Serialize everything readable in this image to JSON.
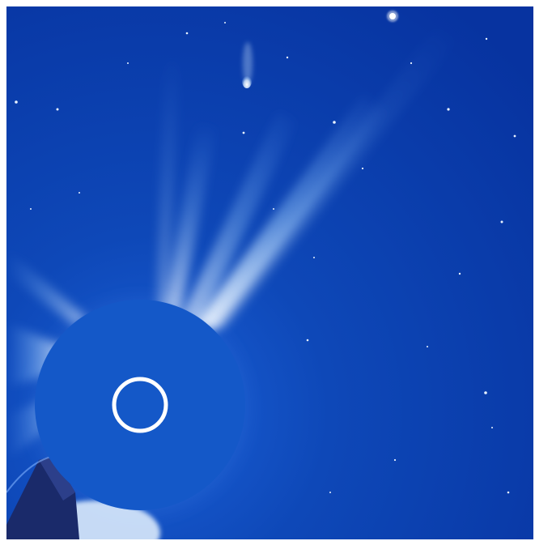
{
  "image": {
    "kind": "coronagraph-view",
    "features": [
      "coronal-streamers",
      "occulter-disk",
      "sun-outline",
      "comet",
      "background-stars",
      "bright-planet",
      "occulter-support-arm"
    ],
    "colors": {
      "sky": "#0b3fa8",
      "sky_dark": "#0733a0",
      "streamer": "#cfe6ff",
      "occulter": "#1458c8",
      "sun_ring": "#ffffff",
      "star": "#e8f2ff",
      "pylon": "#1a2a6a"
    }
  }
}
